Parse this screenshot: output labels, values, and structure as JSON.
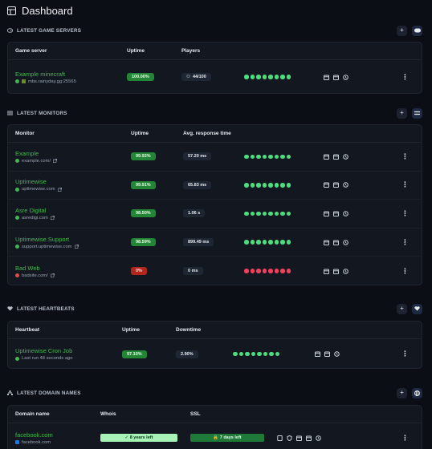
{
  "page": {
    "title": "Dashboard"
  },
  "colors": {
    "accent_green": "#3fb950",
    "danger_red": "#e5484d",
    "background": "#0b0e14"
  },
  "game_servers": {
    "heading": "LATEST GAME SERVERS",
    "columns": {
      "name": "Game server",
      "uptime": "Uptime",
      "players": "Players"
    },
    "rows": [
      {
        "name": "Example minecraft",
        "address": "mbs.rainyday.gg:25565",
        "uptime": "100.00%",
        "players": "44/100",
        "heartbeats": [
          "up",
          "up",
          "up",
          "up",
          "up",
          "up",
          "up",
          "up"
        ]
      }
    ]
  },
  "monitors": {
    "heading": "LATEST MONITORS",
    "columns": {
      "name": "Monitor",
      "uptime": "Uptime",
      "response": "Avg. response time"
    },
    "rows": [
      {
        "name": "Example",
        "url": "example.com/",
        "uptime": "99.92%",
        "uptime_status": "good",
        "response": "57.20 ms",
        "status": "up",
        "heartbeats": [
          "up",
          "up",
          "up",
          "up",
          "up",
          "up",
          "up",
          "up"
        ]
      },
      {
        "name": "Uptimewise",
        "url": "uptimewise.com",
        "uptime": "99.91%",
        "uptime_status": "good",
        "response": "65.83 ms",
        "status": "up",
        "heartbeats": [
          "up",
          "up",
          "up",
          "up",
          "up",
          "up",
          "up",
          "up"
        ]
      },
      {
        "name": "Asre Digital",
        "url": "asredigi.com",
        "uptime": "98.50%",
        "uptime_status": "good",
        "response": "1.06 s",
        "status": "up",
        "heartbeats": [
          "up",
          "up",
          "up",
          "up",
          "up",
          "up",
          "up",
          "up"
        ]
      },
      {
        "name": "Uptimewise Support",
        "url": "support.uptimewise.com",
        "uptime": "98.59%",
        "uptime_status": "good",
        "response": "899.49 ms",
        "status": "up",
        "heartbeats": [
          "up",
          "up",
          "up",
          "up",
          "up",
          "up",
          "up",
          "up"
        ]
      },
      {
        "name": "Bad Web",
        "url": "badsite.com/",
        "uptime": "0%",
        "uptime_status": "bad",
        "response": "0 ms",
        "status": "down",
        "heartbeats": [
          "down",
          "down",
          "down",
          "down",
          "down",
          "down",
          "down",
          "down"
        ]
      }
    ]
  },
  "heartbeats": {
    "heading": "LATEST HEARTBEATS",
    "columns": {
      "name": "Heartbeat",
      "uptime": "Uptime",
      "downtime": "Downtime"
    },
    "rows": [
      {
        "name": "Uptimewise Cron Job",
        "last_run": "Last run 48 seconds ago",
        "uptime": "97.10%",
        "downtime": "2.90%",
        "heartbeats": [
          "up",
          "up",
          "up",
          "up",
          "up",
          "up",
          "up",
          "up"
        ]
      }
    ]
  },
  "domains": {
    "heading": "LATEST DOMAIN NAMES",
    "columns": {
      "name": "Domain name",
      "whois": "Whois",
      "ssl": "SSL"
    },
    "rows": [
      {
        "name": "facebook.com",
        "url": "facebook.com",
        "whois": "8 years left",
        "ssl": "7 days left"
      }
    ]
  }
}
